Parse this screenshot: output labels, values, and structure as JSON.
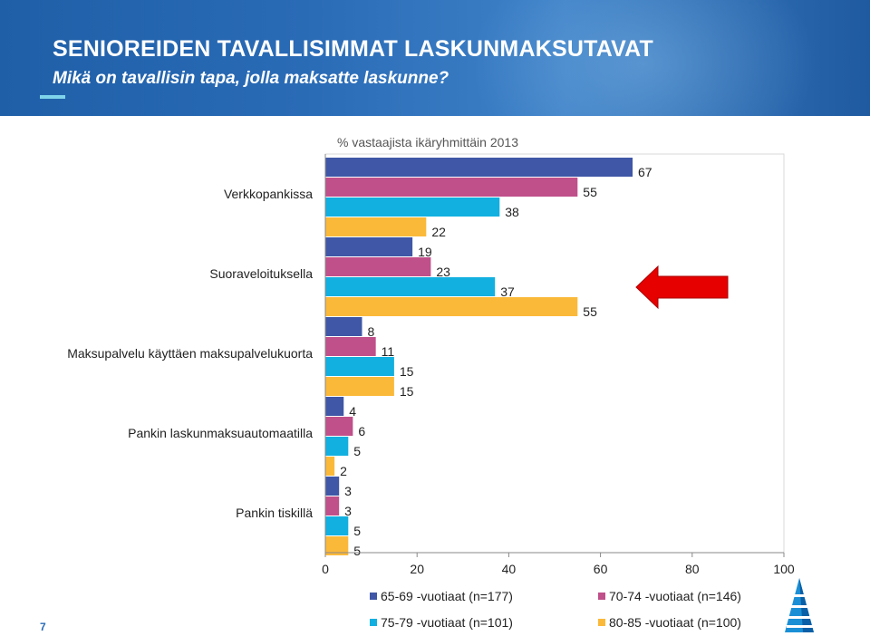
{
  "slide": {
    "title": "SENIOREIDEN TAVALLISIMMAT LASKUNMAKSUTAVAT",
    "subtitle": "Mikä on tavallisin tapa, jolla maksatte laskunne?",
    "page_number": "7",
    "chart_note": "% vastaajista ikäryhmittäin 2013"
  },
  "colors": {
    "banner": "#2a6bb6",
    "arrow": "#e60000"
  },
  "chart_data": {
    "type": "bar",
    "orientation": "horizontal",
    "categories": [
      "Verkkopankissa",
      "Suoraveloituksella",
      "Maksupalvelu käyttäen maksupalvelukuorta",
      "Pankin laskunmaksuautomaatilla",
      "Pankin tiskillä"
    ],
    "series": [
      {
        "name": "65-69 -vuotiaat (n=177)",
        "color": "#3f57a6",
        "values": [
          67,
          19,
          8,
          4,
          3
        ]
      },
      {
        "name": "70-74 -vuotiaat (n=146)",
        "color": "#c0508a",
        "values": [
          55,
          23,
          11,
          6,
          3
        ]
      },
      {
        "name": "75-79 -vuotiaat (n=101)",
        "color": "#12b0e0",
        "values": [
          38,
          37,
          15,
          5,
          5
        ]
      },
      {
        "name": "80-85 -vuotiaat (n=100)",
        "color": "#fbb93a",
        "values": [
          22,
          55,
          15,
          2,
          5
        ]
      }
    ],
    "xlim": [
      0,
      100
    ],
    "xticks": [
      0,
      20,
      40,
      60,
      80,
      100
    ],
    "grid": false,
    "legend": "bottom"
  }
}
